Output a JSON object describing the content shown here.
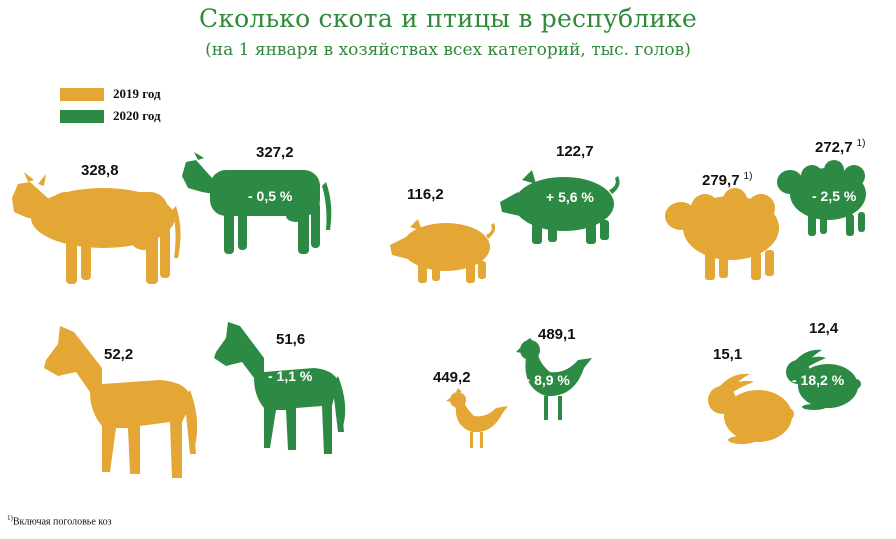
{
  "title": "Сколько скота и птицы в республике",
  "subtitle": "(на 1 января в хозяйствах всех категорий, тыс. голов)",
  "colors": {
    "y2019": "#e4a634",
    "y2020": "#2d8a45"
  },
  "legend": [
    {
      "label": "2019 год",
      "color": "#e4a634"
    },
    {
      "label": "2020 год",
      "color": "#2d8a45"
    }
  ],
  "footnote": {
    "mark": "1)",
    "text": "Включая поголовье коз"
  },
  "chart_data": {
    "type": "bar",
    "series": [
      {
        "name": "2019 год",
        "values": [
          328.8,
          116.2,
          279.7,
          52.2,
          449.2,
          15.1
        ]
      },
      {
        "name": "2020 год",
        "values": [
          327.2,
          122.7,
          272.7,
          51.6,
          489.1,
          12.4
        ]
      }
    ],
    "items": [
      {
        "icon": "cow-icon",
        "v2019": "328,8",
        "v2020": "327,2",
        "change": "- 0,5 %",
        "note2019": "",
        "note2020": ""
      },
      {
        "icon": "pig-icon",
        "v2019": "116,2",
        "v2020": "122,7",
        "change": "+ 5,6 %",
        "note2019": "",
        "note2020": ""
      },
      {
        "icon": "sheep-icon",
        "v2019": "279,7",
        "v2020": "272,7",
        "change": "- 2,5 %",
        "note2019": "1)",
        "note2020": "1)"
      },
      {
        "icon": "horse-icon",
        "v2019": "52,2",
        "v2020": "51,6",
        "change": "- 1,1 %",
        "note2019": "",
        "note2020": ""
      },
      {
        "icon": "chicken-icon",
        "v2019": "449,2",
        "v2020": "489,1",
        "change": "+ 8,9 %",
        "note2019": "",
        "note2020": ""
      },
      {
        "icon": "rabbit-icon",
        "v2019": "15,1",
        "v2020": "12,4",
        "change": "- 18,2 %",
        "note2019": "",
        "note2020": ""
      }
    ]
  }
}
